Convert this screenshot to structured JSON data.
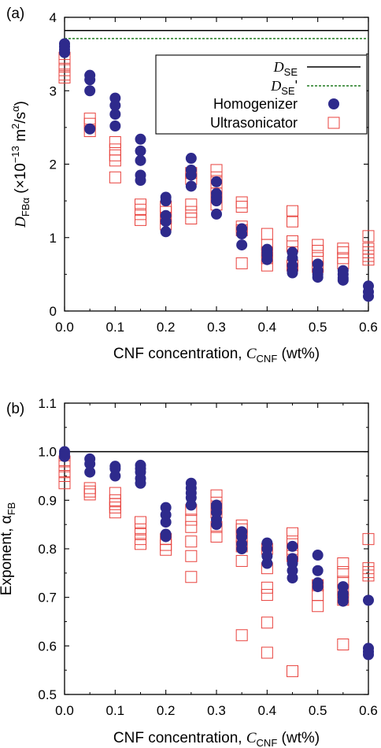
{
  "colors": {
    "homogenizer": "#2e2a8c",
    "ultrasonicator": "#e8413c",
    "dse": "#000000",
    "dse_prime": "#1f7a1f"
  },
  "chart_data": [
    {
      "type": "scatter",
      "panel_label": "(a)",
      "xlabel": {
        "prefix": "CNF concentration, ",
        "symbol": "C",
        "sub": "CNF",
        "suffix": " (wt%)"
      },
      "ylabel": {
        "symbol": "D",
        "sub": "FBα",
        "units_open": " (×10",
        "exp": "−13",
        "units_mid": " m",
        "exp2": "2",
        "units_s": "/s",
        "exp3": "α",
        "units_close": ")"
      },
      "xlim": [
        0,
        0.6
      ],
      "ylim": [
        0,
        4
      ],
      "xticks": [
        "0.0",
        "0.1",
        "0.2",
        "0.3",
        "0.4",
        "0.5",
        "0.6"
      ],
      "yticks": [
        "0",
        "1",
        "2",
        "3",
        "4"
      ],
      "hlines": [
        {
          "name_symbol": "D",
          "name_sub": "SE",
          "name_suffix": "",
          "y": 3.82,
          "style": "solid"
        },
        {
          "name_symbol": "D",
          "name_sub": "SE",
          "name_suffix": "'",
          "y": 3.71,
          "style": "dashed"
        }
      ],
      "legend_position": "top-right",
      "series": [
        {
          "name": "Homogenizer",
          "marker": "filled-circle",
          "points": [
            [
              0,
              3.64
            ],
            [
              0,
              3.6
            ],
            [
              0,
              3.56
            ],
            [
              0,
              3.52
            ],
            [
              0.05,
              3.21
            ],
            [
              0.05,
              3.15
            ],
            [
              0.05,
              3.0
            ],
            [
              0.05,
              2.48
            ],
            [
              0.1,
              2.9
            ],
            [
              0.1,
              2.8
            ],
            [
              0.1,
              2.68
            ],
            [
              0.1,
              2.52
            ],
            [
              0.15,
              2.34
            ],
            [
              0.15,
              2.18
            ],
            [
              0.15,
              2.05
            ],
            [
              0.15,
              1.85
            ],
            [
              0.15,
              1.78
            ],
            [
              0.2,
              1.55
            ],
            [
              0.2,
              1.5
            ],
            [
              0.2,
              1.3
            ],
            [
              0.2,
              1.22
            ],
            [
              0.2,
              1.08
            ],
            [
              0.25,
              2.08
            ],
            [
              0.25,
              1.92
            ],
            [
              0.25,
              1.85
            ],
            [
              0.25,
              1.7
            ],
            [
              0.3,
              1.76
            ],
            [
              0.3,
              1.6
            ],
            [
              0.3,
              1.55
            ],
            [
              0.3,
              1.5
            ],
            [
              0.3,
              1.32
            ],
            [
              0.35,
              1.12
            ],
            [
              0.35,
              1.05
            ],
            [
              0.35,
              0.9
            ],
            [
              0.4,
              0.84
            ],
            [
              0.4,
              0.8
            ],
            [
              0.4,
              0.76
            ],
            [
              0.4,
              0.7
            ],
            [
              0.45,
              0.8
            ],
            [
              0.45,
              0.72
            ],
            [
              0.45,
              0.62
            ],
            [
              0.45,
              0.55
            ],
            [
              0.45,
              0.52
            ],
            [
              0.5,
              0.64
            ],
            [
              0.5,
              0.55
            ],
            [
              0.5,
              0.5
            ],
            [
              0.5,
              0.46
            ],
            [
              0.55,
              0.55
            ],
            [
              0.55,
              0.5
            ],
            [
              0.55,
              0.45
            ],
            [
              0.55,
              0.42
            ],
            [
              0.6,
              0.34
            ],
            [
              0.6,
              0.26
            ],
            [
              0.6,
              0.2
            ]
          ]
        },
        {
          "name": "Ultrasonicator",
          "marker": "open-square",
          "points": [
            [
              0,
              3.45
            ],
            [
              0,
              3.35
            ],
            [
              0,
              3.28
            ],
            [
              0,
              3.22
            ],
            [
              0,
              3.18
            ],
            [
              0.05,
              2.62
            ],
            [
              0.05,
              2.55
            ],
            [
              0.05,
              2.45
            ],
            [
              0.1,
              2.3
            ],
            [
              0.1,
              2.2
            ],
            [
              0.1,
              2.12
            ],
            [
              0.1,
              2.05
            ],
            [
              0.1,
              1.82
            ],
            [
              0.15,
              1.45
            ],
            [
              0.15,
              1.38
            ],
            [
              0.15,
              1.32
            ],
            [
              0.15,
              1.24
            ],
            [
              0.2,
              1.42
            ],
            [
              0.2,
              1.35
            ],
            [
              0.2,
              1.26
            ],
            [
              0.2,
              1.18
            ],
            [
              0.25,
              1.88
            ],
            [
              0.25,
              1.8
            ],
            [
              0.25,
              1.45
            ],
            [
              0.25,
              1.35
            ],
            [
              0.25,
              1.26
            ],
            [
              0.3,
              1.92
            ],
            [
              0.3,
              1.82
            ],
            [
              0.3,
              1.75
            ],
            [
              0.3,
              1.6
            ],
            [
              0.3,
              1.45
            ],
            [
              0.35,
              1.48
            ],
            [
              0.35,
              1.42
            ],
            [
              0.35,
              1.15
            ],
            [
              0.35,
              1.1
            ],
            [
              0.35,
              0.65
            ],
            [
              0.4,
              1.05
            ],
            [
              0.4,
              0.9
            ],
            [
              0.4,
              0.8
            ],
            [
              0.4,
              0.72
            ],
            [
              0.4,
              0.62
            ],
            [
              0.45,
              1.36
            ],
            [
              0.45,
              1.22
            ],
            [
              0.45,
              0.95
            ],
            [
              0.45,
              0.88
            ],
            [
              0.45,
              0.62
            ],
            [
              0.5,
              0.9
            ],
            [
              0.5,
              0.82
            ],
            [
              0.5,
              0.72
            ],
            [
              0.5,
              0.6
            ],
            [
              0.55,
              0.85
            ],
            [
              0.55,
              0.8
            ],
            [
              0.55,
              0.72
            ],
            [
              0.55,
              0.65
            ],
            [
              0.6,
              1.02
            ],
            [
              0.6,
              0.85
            ],
            [
              0.6,
              0.8
            ],
            [
              0.6,
              0.75
            ],
            [
              0.6,
              0.7
            ]
          ]
        }
      ]
    },
    {
      "type": "scatter",
      "panel_label": "(b)",
      "xlabel": {
        "prefix": "CNF concentration, ",
        "symbol": "C",
        "sub": "CNF",
        "suffix": " (wt%)"
      },
      "ylabel": {
        "prefix": "Exponent, ",
        "symbol": "α",
        "sub": "FB"
      },
      "xlim": [
        0,
        0.6
      ],
      "ylim": [
        0.5,
        1.1
      ],
      "xticks": [
        "0.0",
        "0.1",
        "0.2",
        "0.3",
        "0.4",
        "0.5",
        "0.6"
      ],
      "yticks": [
        "0.5",
        "0.6",
        "0.7",
        "0.8",
        "0.9",
        "1.0",
        "1.1"
      ],
      "hlines": [
        {
          "y": 1.0,
          "style": "solid"
        }
      ],
      "series": [
        {
          "name": "Homogenizer",
          "marker": "filled-circle",
          "points": [
            [
              0,
              1.0
            ],
            [
              0,
              0.995
            ],
            [
              0,
              0.99
            ],
            [
              0.05,
              0.985
            ],
            [
              0.05,
              0.975
            ],
            [
              0.05,
              0.958
            ],
            [
              0.1,
              0.97
            ],
            [
              0.1,
              0.965
            ],
            [
              0.1,
              0.95
            ],
            [
              0.15,
              0.972
            ],
            [
              0.15,
              0.965
            ],
            [
              0.15,
              0.958
            ],
            [
              0.15,
              0.945
            ],
            [
              0.15,
              0.935
            ],
            [
              0.2,
              0.885
            ],
            [
              0.2,
              0.87
            ],
            [
              0.2,
              0.855
            ],
            [
              0.2,
              0.83
            ],
            [
              0.2,
              0.825
            ],
            [
              0.25,
              0.935
            ],
            [
              0.25,
              0.925
            ],
            [
              0.25,
              0.915
            ],
            [
              0.25,
              0.905
            ],
            [
              0.25,
              0.89
            ],
            [
              0.3,
              0.89
            ],
            [
              0.3,
              0.885
            ],
            [
              0.3,
              0.875
            ],
            [
              0.3,
              0.86
            ],
            [
              0.3,
              0.85
            ],
            [
              0.35,
              0.835
            ],
            [
              0.35,
              0.825
            ],
            [
              0.35,
              0.81
            ],
            [
              0.35,
              0.8
            ],
            [
              0.4,
              0.812
            ],
            [
              0.4,
              0.8
            ],
            [
              0.4,
              0.785
            ],
            [
              0.4,
              0.77
            ],
            [
              0.45,
              0.805
            ],
            [
              0.45,
              0.78
            ],
            [
              0.45,
              0.77
            ],
            [
              0.45,
              0.755
            ],
            [
              0.45,
              0.74
            ],
            [
              0.5,
              0.787
            ],
            [
              0.5,
              0.755
            ],
            [
              0.5,
              0.73
            ],
            [
              0.5,
              0.722
            ],
            [
              0.55,
              0.722
            ],
            [
              0.55,
              0.708
            ],
            [
              0.55,
              0.7
            ],
            [
              0.55,
              0.692
            ],
            [
              0.6,
              0.694
            ],
            [
              0.6,
              0.595
            ],
            [
              0.6,
              0.588
            ],
            [
              0.6,
              0.582
            ]
          ]
        },
        {
          "name": "Ultrasonicator",
          "marker": "open-square",
          "points": [
            [
              0,
              0.98
            ],
            [
              0,
              0.97
            ],
            [
              0,
              0.96
            ],
            [
              0,
              0.95
            ],
            [
              0,
              0.935
            ],
            [
              0.05,
              0.925
            ],
            [
              0.05,
              0.918
            ],
            [
              0.05,
              0.912
            ],
            [
              0.1,
              0.915
            ],
            [
              0.1,
              0.9
            ],
            [
              0.1,
              0.892
            ],
            [
              0.1,
              0.885
            ],
            [
              0.1,
              0.875
            ],
            [
              0.15,
              0.855
            ],
            [
              0.15,
              0.84
            ],
            [
              0.15,
              0.83
            ],
            [
              0.15,
              0.82
            ],
            [
              0.15,
              0.81
            ],
            [
              0.2,
              0.82
            ],
            [
              0.2,
              0.808
            ],
            [
              0.2,
              0.798
            ],
            [
              0.25,
              0.88
            ],
            [
              0.25,
              0.86
            ],
            [
              0.25,
              0.845
            ],
            [
              0.25,
              0.815
            ],
            [
              0.25,
              0.785
            ],
            [
              0.25,
              0.742
            ],
            [
              0.3,
              0.91
            ],
            [
              0.3,
              0.895
            ],
            [
              0.3,
              0.875
            ],
            [
              0.3,
              0.845
            ],
            [
              0.3,
              0.825
            ],
            [
              0.35,
              0.848
            ],
            [
              0.35,
              0.84
            ],
            [
              0.35,
              0.825
            ],
            [
              0.35,
              0.805
            ],
            [
              0.35,
              0.775
            ],
            [
              0.35,
              0.622
            ],
            [
              0.4,
              0.8
            ],
            [
              0.4,
              0.76
            ],
            [
              0.4,
              0.72
            ],
            [
              0.4,
              0.705
            ],
            [
              0.4,
              0.648
            ],
            [
              0.4,
              0.586
            ],
            [
              0.45,
              0.832
            ],
            [
              0.45,
              0.815
            ],
            [
              0.45,
              0.8
            ],
            [
              0.45,
              0.785
            ],
            [
              0.45,
              0.548
            ],
            [
              0.5,
              0.725
            ],
            [
              0.5,
              0.705
            ],
            [
              0.5,
              0.682
            ],
            [
              0.55,
              0.77
            ],
            [
              0.55,
              0.752
            ],
            [
              0.55,
              0.732
            ],
            [
              0.55,
              0.715
            ],
            [
              0.55,
              0.695
            ],
            [
              0.55,
              0.603
            ],
            [
              0.6,
              0.82
            ],
            [
              0.6,
              0.76
            ],
            [
              0.6,
              0.752
            ],
            [
              0.6,
              0.745
            ]
          ]
        }
      ]
    }
  ]
}
